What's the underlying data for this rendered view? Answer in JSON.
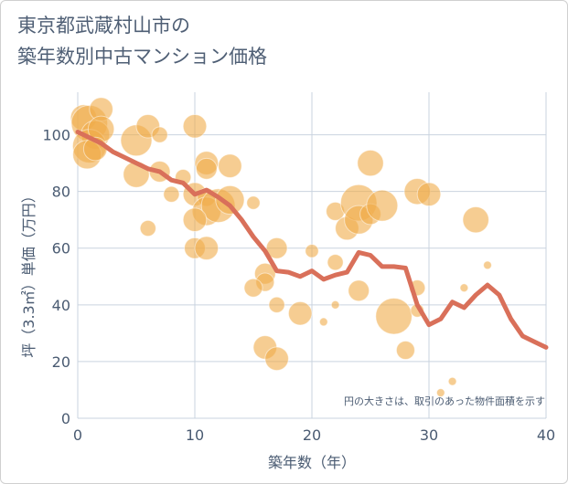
{
  "title": {
    "line1": "東京都武蔵村山市の",
    "line2": "築年数別中古マンション価格"
  },
  "colors": {
    "bubble": "#f0ac4a",
    "line": "#d9705a",
    "grid": "#c9d3df",
    "text": "#4a5b72"
  },
  "chart_data": {
    "type": "scatter",
    "xlabel": "築年数（年）",
    "ylabel": "坪（3.3㎡）単価（万円）",
    "xlim": [
      0,
      40
    ],
    "ylim": [
      0,
      115
    ],
    "xticks": [
      0,
      10,
      20,
      30,
      40
    ],
    "yticks": [
      0,
      20,
      40,
      60,
      80,
      100
    ],
    "grid": true,
    "note": "円の大きさは、取引のあった物件面積を示す",
    "bubbles": [
      {
        "x": 0.5,
        "y": 106,
        "size": 8
      },
      {
        "x": 1,
        "y": 104,
        "size": 12
      },
      {
        "x": 1.5,
        "y": 100,
        "size": 9
      },
      {
        "x": 1,
        "y": 96,
        "size": 11
      },
      {
        "x": 0.8,
        "y": 93,
        "size": 9
      },
      {
        "x": 2,
        "y": 109,
        "size": 7
      },
      {
        "x": 2,
        "y": 102,
        "size": 8
      },
      {
        "x": 1.5,
        "y": 95,
        "size": 7
      },
      {
        "x": 5,
        "y": 98,
        "size": 10
      },
      {
        "x": 6,
        "y": 103,
        "size": 7
      },
      {
        "x": 7,
        "y": 100,
        "size": 4
      },
      {
        "x": 5,
        "y": 86,
        "size": 8
      },
      {
        "x": 7,
        "y": 87,
        "size": 6
      },
      {
        "x": 8,
        "y": 79,
        "size": 4
      },
      {
        "x": 9,
        "y": 85,
        "size": 4
      },
      {
        "x": 6,
        "y": 67,
        "size": 4
      },
      {
        "x": 10,
        "y": 103,
        "size": 7
      },
      {
        "x": 11,
        "y": 90,
        "size": 7
      },
      {
        "x": 11,
        "y": 88,
        "size": 6
      },
      {
        "x": 13,
        "y": 89,
        "size": 7
      },
      {
        "x": 10,
        "y": 79,
        "size": 7
      },
      {
        "x": 11,
        "y": 78,
        "size": 5
      },
      {
        "x": 11,
        "y": 73,
        "size": 9
      },
      {
        "x": 12,
        "y": 75,
        "size": 11
      },
      {
        "x": 13,
        "y": 77,
        "size": 9
      },
      {
        "x": 10,
        "y": 70,
        "size": 7
      },
      {
        "x": 10,
        "y": 60,
        "size": 6
      },
      {
        "x": 11,
        "y": 60,
        "size": 7
      },
      {
        "x": 15,
        "y": 76,
        "size": 3
      },
      {
        "x": 16,
        "y": 51,
        "size": 6
      },
      {
        "x": 16,
        "y": 48,
        "size": 5
      },
      {
        "x": 15,
        "y": 46,
        "size": 5
      },
      {
        "x": 17,
        "y": 60,
        "size": 6
      },
      {
        "x": 17,
        "y": 40,
        "size": 4
      },
      {
        "x": 19,
        "y": 37,
        "size": 7
      },
      {
        "x": 16,
        "y": 25,
        "size": 7
      },
      {
        "x": 17,
        "y": 21,
        "size": 7
      },
      {
        "x": 20,
        "y": 59,
        "size": 3
      },
      {
        "x": 21,
        "y": 34,
        "size": 1
      },
      {
        "x": 22,
        "y": 73,
        "size": 5
      },
      {
        "x": 22,
        "y": 55,
        "size": 4
      },
      {
        "x": 22,
        "y": 40,
        "size": 1
      },
      {
        "x": 23,
        "y": 67,
        "size": 7
      },
      {
        "x": 24,
        "y": 76,
        "size": 12
      },
      {
        "x": 24,
        "y": 70,
        "size": 9
      },
      {
        "x": 25,
        "y": 72,
        "size": 6
      },
      {
        "x": 24,
        "y": 45,
        "size": 6
      },
      {
        "x": 25,
        "y": 90,
        "size": 8
      },
      {
        "x": 26,
        "y": 75,
        "size": 10
      },
      {
        "x": 27,
        "y": 36,
        "size": 12
      },
      {
        "x": 28,
        "y": 24,
        "size": 5
      },
      {
        "x": 29,
        "y": 80,
        "size": 8
      },
      {
        "x": 30,
        "y": 79,
        "size": 7
      },
      {
        "x": 29,
        "y": 46,
        "size": 4
      },
      {
        "x": 29,
        "y": 38,
        "size": 3
      },
      {
        "x": 31,
        "y": 9,
        "size": 1
      },
      {
        "x": 32,
        "y": 13,
        "size": 1
      },
      {
        "x": 33,
        "y": 46,
        "size": 1
      },
      {
        "x": 34,
        "y": 70,
        "size": 8
      },
      {
        "x": 35,
        "y": 54,
        "size": 1
      }
    ],
    "series": [
      {
        "x": [
          0,
          1,
          2,
          3,
          4,
          5,
          6,
          7,
          8,
          9,
          10,
          11,
          12,
          13,
          14,
          15,
          16,
          17,
          18,
          19,
          20,
          21,
          22,
          23,
          24,
          25,
          26,
          27,
          28,
          29,
          30,
          31,
          32,
          33,
          34,
          35,
          36,
          37,
          38,
          39,
          40
        ],
        "y": [
          101,
          99,
          97,
          94,
          92,
          90,
          88,
          87,
          84,
          83,
          79,
          80.5,
          78,
          75,
          70,
          64,
          59,
          52,
          51.5,
          50,
          52,
          49,
          50.5,
          51.5,
          58.5,
          57.5,
          53.5,
          53.5,
          53,
          40,
          33,
          35,
          41,
          39,
          43.5,
          47,
          43.5,
          35,
          29,
          27,
          25
        ]
      }
    ]
  }
}
